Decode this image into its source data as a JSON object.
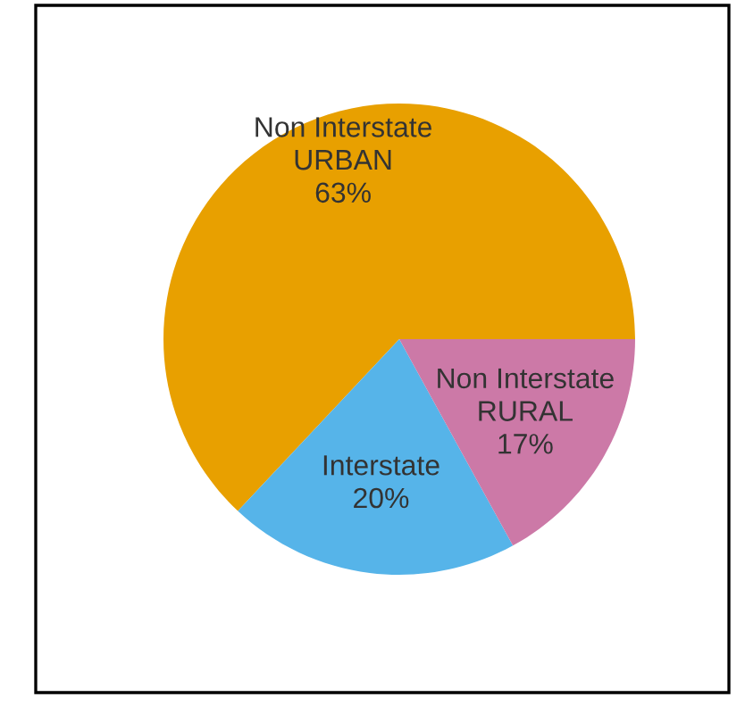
{
  "chart_data": {
    "type": "pie",
    "categories": [
      "Non Interstate\nURBAN",
      "Interstate",
      "Non Interstate\nRURAL"
    ],
    "values": [
      63,
      20,
      17
    ],
    "value_labels": [
      "63%",
      "20%",
      "17%"
    ],
    "colors": [
      "#e8a000",
      "#56b4e9",
      "#cc79a7"
    ],
    "legend": false
  }
}
